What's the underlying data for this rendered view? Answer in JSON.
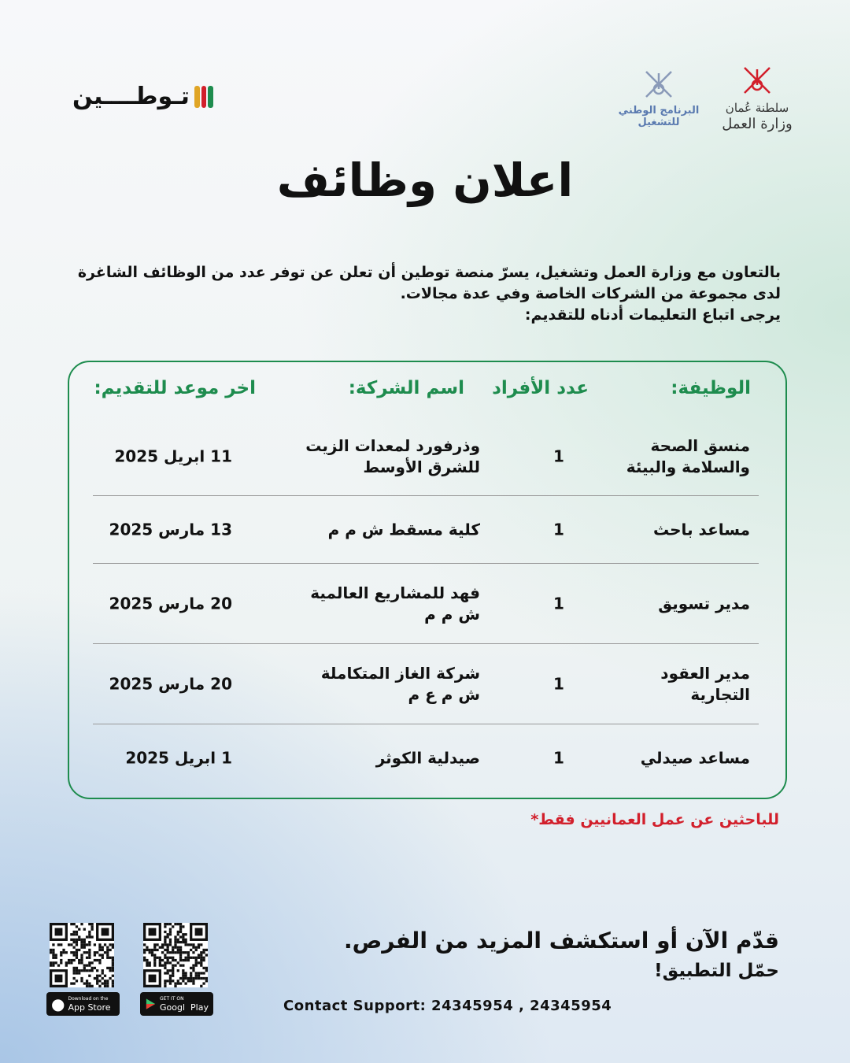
{
  "logos": {
    "tawteen": "تـوطــــين",
    "national_program": [
      "البرنامج الوطني",
      "للتشغيل"
    ],
    "ministry": [
      "سلطنة عُمان",
      "وزارة العمل"
    ]
  },
  "title": "اعلان وظائف",
  "intro": [
    "بالتعاون مع وزارة العمل وتشغيل، يسرّ منصة توطين أن تعلن عن توفر عدد من الوظائف الشاغرة",
    "لدى مجموعة من الشركات الخاصة وفي عدة مجالات.",
    "يرجى اتباع التعليمات أدناه للتقديم:"
  ],
  "table": {
    "headers": {
      "job": "الوظيفة:",
      "count": "عدد الأفراد",
      "company": "اسم الشركة:",
      "deadline": "اخر موعد للتقديم:"
    },
    "rows": [
      {
        "job": "منسق الصحة والسلامة والبيئة",
        "count": "1",
        "company": "وذرفورد لمعدات الزيت للشرق الأوسط",
        "deadline": "11 ابريل 2025"
      },
      {
        "job": "مساعد باحث",
        "count": "1",
        "company": "كلية مسقط ش م م",
        "deadline": "13 مارس 2025"
      },
      {
        "job": "مدير تسويق",
        "count": "1",
        "company": "فهد للمشاريع العالمية ش م م",
        "deadline": "20 مارس 2025"
      },
      {
        "job": "مدير العقود التجارية",
        "count": "1",
        "company": "شركة الغاز المتكاملة ش م ع م",
        "deadline": "20 مارس 2025"
      },
      {
        "job": "مساعد صيدلي",
        "count": "1",
        "company": "صيدلية الكوثر",
        "deadline": "1 ابريل 2025"
      }
    ]
  },
  "note": "للباحثين عن عمل العمانيين فقط*",
  "cta": {
    "line1": "قدّم الآن أو استكشف المزيد من الفرص.",
    "line2": "حمّل التطبيق!"
  },
  "support": "Contact Support: 24345954 , 24345954",
  "stores": {
    "appstore": {
      "small": "Download on the",
      "large": "App Store"
    },
    "googleplay": {
      "small": "GET IT ON",
      "large": "Googl  Play"
    }
  },
  "colors": {
    "green": "#1e8c4e",
    "red": "#d21f2b"
  }
}
